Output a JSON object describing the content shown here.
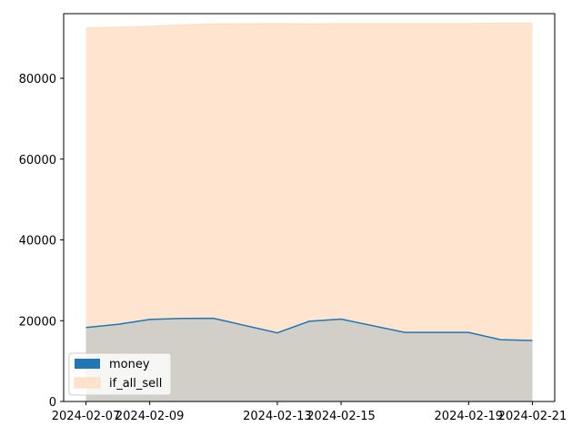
{
  "chart_data": {
    "type": "area",
    "x": [
      "2024-02-07",
      "2024-02-08",
      "2024-02-09",
      "2024-02-10",
      "2024-02-11",
      "2024-02-13",
      "2024-02-14",
      "2024-02-15",
      "2024-02-17",
      "2024-02-19",
      "2024-02-20",
      "2024-02-21"
    ],
    "series": [
      {
        "name": "money",
        "values": [
          18300,
          19100,
          20300,
          20550,
          20600,
          17000,
          19850,
          20400,
          17100,
          17100,
          15300,
          15100
        ],
        "color": "#1f77b4",
        "fill": "#1f77b4",
        "fill_opacity": 0.2,
        "line": true
      },
      {
        "name": "if_all_sell",
        "values": [
          92500,
          92700,
          92900,
          93300,
          93500,
          93600,
          93500,
          93600,
          93600,
          93600,
          93700,
          93700
        ],
        "color": "#ff7f0e",
        "fill": "#ff7f0e",
        "fill_opacity": 0.2,
        "line": false
      }
    ],
    "xticks": [
      "2024-02-07",
      "2024-02-09",
      "2024-02-13",
      "2024-02-15",
      "2024-02-19",
      "2024-02-21"
    ],
    "ytick_values": [
      0,
      20000,
      40000,
      60000,
      80000
    ],
    "ylim": [
      0,
      96000
    ],
    "title": "",
    "xlabel": "",
    "ylabel": "",
    "grid": false,
    "legend": {
      "position": "lower-left",
      "entries": [
        "money",
        "if_all_sell"
      ]
    }
  }
}
